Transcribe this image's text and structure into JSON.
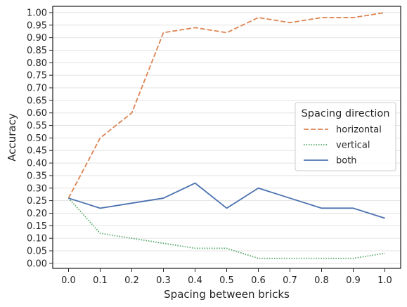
{
  "chart_data": {
    "type": "line",
    "title": "",
    "xlabel": "Spacing between bricks",
    "ylabel": "Accuracy",
    "x": [
      0.0,
      0.1,
      0.2,
      0.3,
      0.4,
      0.5,
      0.6,
      0.7,
      0.8,
      0.9,
      1.0
    ],
    "x_tick_labels": [
      "0.0",
      "0.1",
      "0.2",
      "0.3",
      "0.4",
      "0.5",
      "0.6",
      "0.7",
      "0.8",
      "0.9",
      "1.0"
    ],
    "y_tick_labels": [
      "0.00",
      "0.05",
      "0.10",
      "0.15",
      "0.20",
      "0.25",
      "0.30",
      "0.35",
      "0.40",
      "0.45",
      "0.50",
      "0.55",
      "0.60",
      "0.65",
      "0.70",
      "0.75",
      "0.80",
      "0.85",
      "0.90",
      "0.95",
      "1.00"
    ],
    "xlim": [
      -0.05,
      1.05
    ],
    "ylim": [
      -0.02,
      1.025
    ],
    "grid": "horizontal",
    "legend": {
      "title": "Spacing direction",
      "placement": "center-right",
      "entries": [
        "horizontal",
        "vertical",
        "both"
      ]
    },
    "series": [
      {
        "name": "horizontal",
        "color": "#dd8452",
        "dash": "dashed",
        "values": [
          0.26,
          0.5,
          0.6,
          0.92,
          0.94,
          0.92,
          0.98,
          0.96,
          0.98,
          0.98,
          1.0
        ]
      },
      {
        "name": "vertical",
        "color": "#55a868",
        "dash": "dotted",
        "values": [
          0.26,
          0.12,
          0.1,
          0.08,
          0.06,
          0.06,
          0.02,
          0.02,
          0.02,
          0.02,
          0.04
        ]
      },
      {
        "name": "both",
        "color": "#4c72b0",
        "dash": "solid",
        "values": [
          0.26,
          0.22,
          0.24,
          0.26,
          0.32,
          0.22,
          0.3,
          0.26,
          0.22,
          0.22,
          0.18
        ]
      }
    ]
  }
}
